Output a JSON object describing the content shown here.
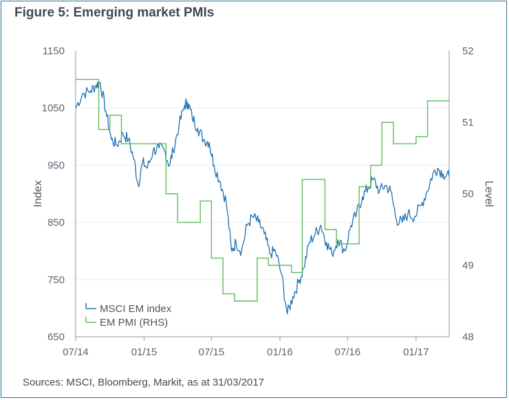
{
  "title": "Figure 5: Emerging market PMIs",
  "footer": "Sources: MSCI, Bloomberg, Markit, as at 31/03/2017",
  "colors": {
    "msci": "#1c6fb1",
    "pmi": "#5dbb5a",
    "axis": "#8a94a0",
    "grid": "#e8ecef"
  },
  "chart_data": {
    "type": "line",
    "xlabel": "",
    "ylabel": "Index",
    "y2label": "Level",
    "ylim": [
      650,
      1150
    ],
    "y2lim": [
      48,
      52
    ],
    "yticks": [
      "1150",
      "1050",
      "950",
      "850",
      "750",
      "650"
    ],
    "y2ticks": [
      "52",
      "51",
      "50",
      "49",
      "48"
    ],
    "xticks": [
      "07/14",
      "01/15",
      "07/15",
      "01/16",
      "07/16",
      "01/17"
    ],
    "xrange": [
      "2014-07-01",
      "2017-03-31"
    ],
    "legend": {
      "placement": "bottom-left",
      "items": [
        "MSCI EM index",
        "EM PMI (RHS)"
      ]
    },
    "series": [
      {
        "name": "MSCI EM index",
        "axis": "left",
        "points": [
          [
            "2014-07-01",
            1050
          ],
          [
            "2014-07-20",
            1075
          ],
          [
            "2014-08-10",
            1080
          ],
          [
            "2014-08-25",
            1090
          ],
          [
            "2014-09-05",
            1095
          ],
          [
            "2014-09-20",
            1045
          ],
          [
            "2014-10-05",
            995
          ],
          [
            "2014-10-20",
            985
          ],
          [
            "2014-11-05",
            1005
          ],
          [
            "2014-11-20",
            995
          ],
          [
            "2014-12-05",
            960
          ],
          [
            "2014-12-16",
            915
          ],
          [
            "2014-12-28",
            955
          ],
          [
            "2015-01-10",
            945
          ],
          [
            "2015-01-25",
            975
          ],
          [
            "2015-02-10",
            980
          ],
          [
            "2015-02-25",
            975
          ],
          [
            "2015-03-10",
            950
          ],
          [
            "2015-03-20",
            975
          ],
          [
            "2015-04-05",
            1020
          ],
          [
            "2015-04-20",
            1055
          ],
          [
            "2015-04-28",
            1060
          ],
          [
            "2015-05-10",
            1035
          ],
          [
            "2015-05-25",
            1015
          ],
          [
            "2015-06-10",
            995
          ],
          [
            "2015-06-25",
            990
          ],
          [
            "2015-07-08",
            950
          ],
          [
            "2015-07-25",
            920
          ],
          [
            "2015-08-10",
            885
          ],
          [
            "2015-08-24",
            800
          ],
          [
            "2015-09-05",
            815
          ],
          [
            "2015-09-20",
            800
          ],
          [
            "2015-10-05",
            845
          ],
          [
            "2015-10-20",
            860
          ],
          [
            "2015-11-05",
            850
          ],
          [
            "2015-11-20",
            830
          ],
          [
            "2015-12-05",
            795
          ],
          [
            "2015-12-20",
            800
          ],
          [
            "2016-01-05",
            760
          ],
          [
            "2016-01-21",
            690
          ],
          [
            "2016-02-05",
            720
          ],
          [
            "2016-02-20",
            745
          ],
          [
            "2016-03-05",
            770
          ],
          [
            "2016-03-20",
            815
          ],
          [
            "2016-04-05",
            830
          ],
          [
            "2016-04-20",
            845
          ],
          [
            "2016-05-05",
            815
          ],
          [
            "2016-05-20",
            795
          ],
          [
            "2016-06-05",
            820
          ],
          [
            "2016-06-24",
            800
          ],
          [
            "2016-07-10",
            845
          ],
          [
            "2016-07-25",
            865
          ],
          [
            "2016-08-10",
            895
          ],
          [
            "2016-08-25",
            910
          ],
          [
            "2016-09-08",
            925
          ],
          [
            "2016-09-25",
            905
          ],
          [
            "2016-10-10",
            915
          ],
          [
            "2016-10-25",
            905
          ],
          [
            "2016-11-09",
            855
          ],
          [
            "2016-11-25",
            850
          ],
          [
            "2016-12-10",
            865
          ],
          [
            "2016-12-28",
            860
          ],
          [
            "2017-01-15",
            880
          ],
          [
            "2017-01-31",
            905
          ],
          [
            "2017-02-15",
            935
          ],
          [
            "2017-02-28",
            945
          ],
          [
            "2017-03-15",
            935
          ],
          [
            "2017-03-31",
            930
          ]
        ]
      },
      {
        "name": "EM PMI (RHS)",
        "axis": "right",
        "points": [
          [
            "2014-07-01",
            51.6
          ],
          [
            "2014-09-01",
            50.9
          ],
          [
            "2014-10-01",
            51.1
          ],
          [
            "2014-11-01",
            50.7
          ],
          [
            "2015-02-01",
            50.7
          ],
          [
            "2015-03-01",
            50.0
          ],
          [
            "2015-04-01",
            49.6
          ],
          [
            "2015-06-01",
            49.9
          ],
          [
            "2015-07-01",
            49.1
          ],
          [
            "2015-08-01",
            48.6
          ],
          [
            "2015-09-01",
            48.5
          ],
          [
            "2015-11-01",
            49.1
          ],
          [
            "2015-12-01",
            49.0
          ],
          [
            "2016-02-01",
            48.9
          ],
          [
            "2016-03-01",
            50.2
          ],
          [
            "2016-05-01",
            49.5
          ],
          [
            "2016-06-01",
            49.3
          ],
          [
            "2016-08-01",
            50.1
          ],
          [
            "2016-09-01",
            50.4
          ],
          [
            "2016-10-01",
            51.0
          ],
          [
            "2016-11-01",
            50.7
          ],
          [
            "2017-01-01",
            50.8
          ],
          [
            "2017-02-01",
            51.3
          ],
          [
            "2017-03-31",
            51.3
          ]
        ]
      }
    ]
  }
}
